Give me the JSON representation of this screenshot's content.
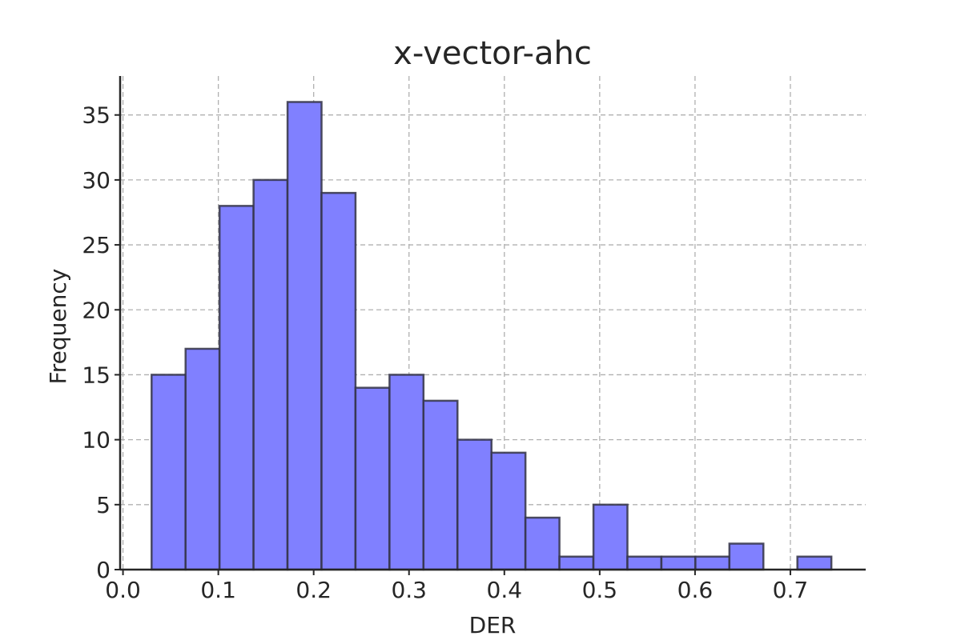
{
  "chart_data": {
    "type": "bar",
    "title": "x-vector-ahc",
    "xlabel": "DER",
    "ylabel": "Frequency",
    "bin_start": 0.03,
    "bin_width": 0.03565,
    "values": [
      15,
      17,
      28,
      30,
      36,
      29,
      14,
      15,
      13,
      10,
      9,
      4,
      1,
      5,
      1,
      1,
      1,
      2,
      0,
      1
    ],
    "xlim": [
      -0.003,
      0.779
    ],
    "ylim": [
      0,
      38
    ],
    "xticks": [
      0.0,
      0.1,
      0.2,
      0.3,
      0.4,
      0.5,
      0.6,
      0.7
    ],
    "xtick_labels": [
      "0.0",
      "0.1",
      "0.2",
      "0.3",
      "0.4",
      "0.5",
      "0.6",
      "0.7"
    ],
    "yticks": [
      0,
      5,
      10,
      15,
      20,
      25,
      30,
      35
    ],
    "ytick_labels": [
      "0",
      "5",
      "10",
      "15",
      "20",
      "25",
      "30",
      "35"
    ],
    "grid": true,
    "bar_color": "#8080ff",
    "edge_color": "#333345"
  }
}
